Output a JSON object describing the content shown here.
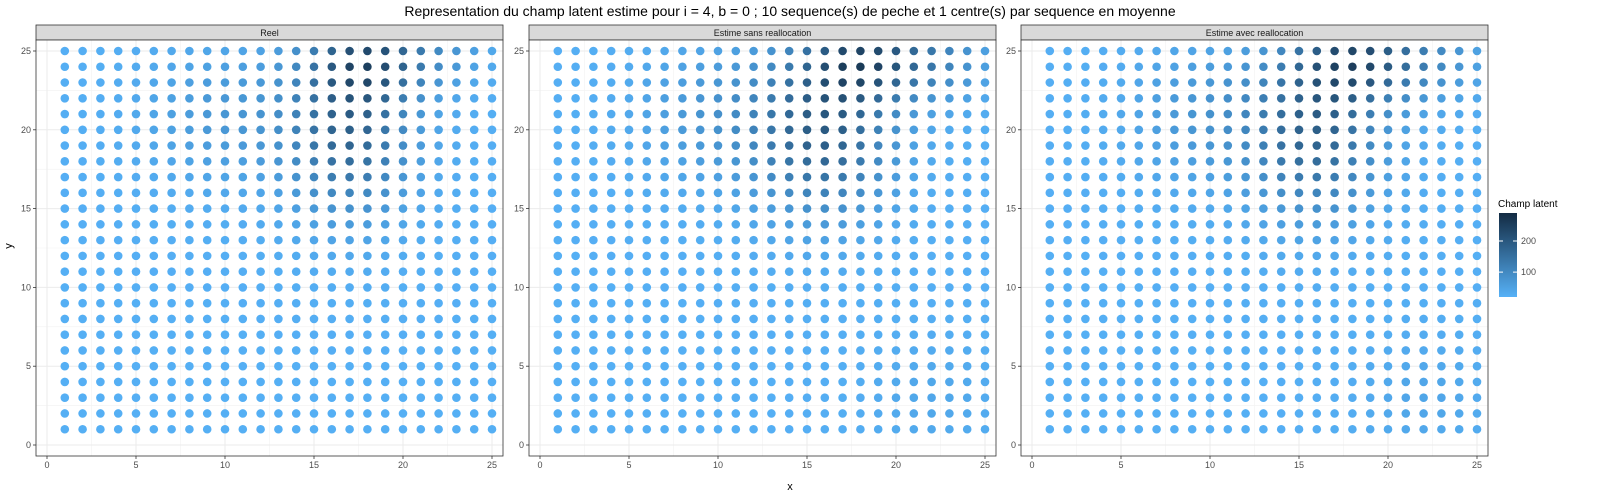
{
  "chart_data": {
    "type": "scatter",
    "title": "Representation du champ latent estime pour i = 4, b = 0 ; 10 sequence(s) de peche et 1 centre(s) par sequence en moyenne",
    "xlabel": "x",
    "ylabel": "y",
    "xlim": [
      0,
      25
    ],
    "ylim": [
      0,
      25
    ],
    "xticks": [
      0,
      5,
      10,
      15,
      20,
      25
    ],
    "yticks": [
      0,
      5,
      10,
      15,
      20,
      25
    ],
    "grid": true,
    "legend": {
      "title": "Champ latent",
      "position": "right",
      "range": [
        20,
        290
      ],
      "ticks": [
        100,
        200
      ],
      "color_low": "#56B1F7",
      "color_high": "#132B43"
    },
    "panels": [
      {
        "label": "Reel",
        "grid_x": [
          1,
          25
        ],
        "grid_y": [
          1,
          25
        ],
        "hotspots": [
          {
            "x": 17,
            "y": 20,
            "sx": 2.4,
            "sy": 3.6,
            "amp": 150
          },
          {
            "x": 18,
            "y": 24.5,
            "sx": 2.2,
            "sy": 1.8,
            "amp": 150
          },
          {
            "x": 10,
            "y": 21,
            "sx": 3.0,
            "sy": 3.0,
            "amp": 45
          },
          {
            "x": 22,
            "y": 25,
            "sx": 2.0,
            "sy": 1.5,
            "amp": 40
          }
        ],
        "base": 25
      },
      {
        "label": "Estime sans reallocation",
        "grid_x": [
          1,
          25
        ],
        "grid_y": [
          1,
          25
        ],
        "hotspots": [
          {
            "x": 16,
            "y": 20,
            "sx": 2.6,
            "sy": 3.6,
            "amp": 160
          },
          {
            "x": 18,
            "y": 24.5,
            "sx": 2.2,
            "sy": 1.8,
            "amp": 160
          },
          {
            "x": 10,
            "y": 21,
            "sx": 3.0,
            "sy": 3.0,
            "amp": 50
          },
          {
            "x": 22,
            "y": 24.5,
            "sx": 2.2,
            "sy": 1.8,
            "amp": 80
          },
          {
            "x": 22,
            "y": 3,
            "sx": 2.5,
            "sy": 2.5,
            "amp": 15
          }
        ],
        "base": 25
      },
      {
        "label": "Estime avec reallocation",
        "grid_x": [
          1,
          25
        ],
        "grid_y": [
          1,
          25
        ],
        "hotspots": [
          {
            "x": 16,
            "y": 20,
            "sx": 2.5,
            "sy": 3.6,
            "amp": 150
          },
          {
            "x": 18,
            "y": 24.5,
            "sx": 2.2,
            "sy": 1.8,
            "amp": 160
          },
          {
            "x": 10,
            "y": 21,
            "sx": 3.0,
            "sy": 3.0,
            "amp": 50
          },
          {
            "x": 22,
            "y": 24.5,
            "sx": 2.2,
            "sy": 1.8,
            "amp": 70
          },
          {
            "x": 22,
            "y": 3,
            "sx": 2.5,
            "sy": 2.5,
            "amp": 18
          }
        ],
        "base": 25
      }
    ]
  }
}
